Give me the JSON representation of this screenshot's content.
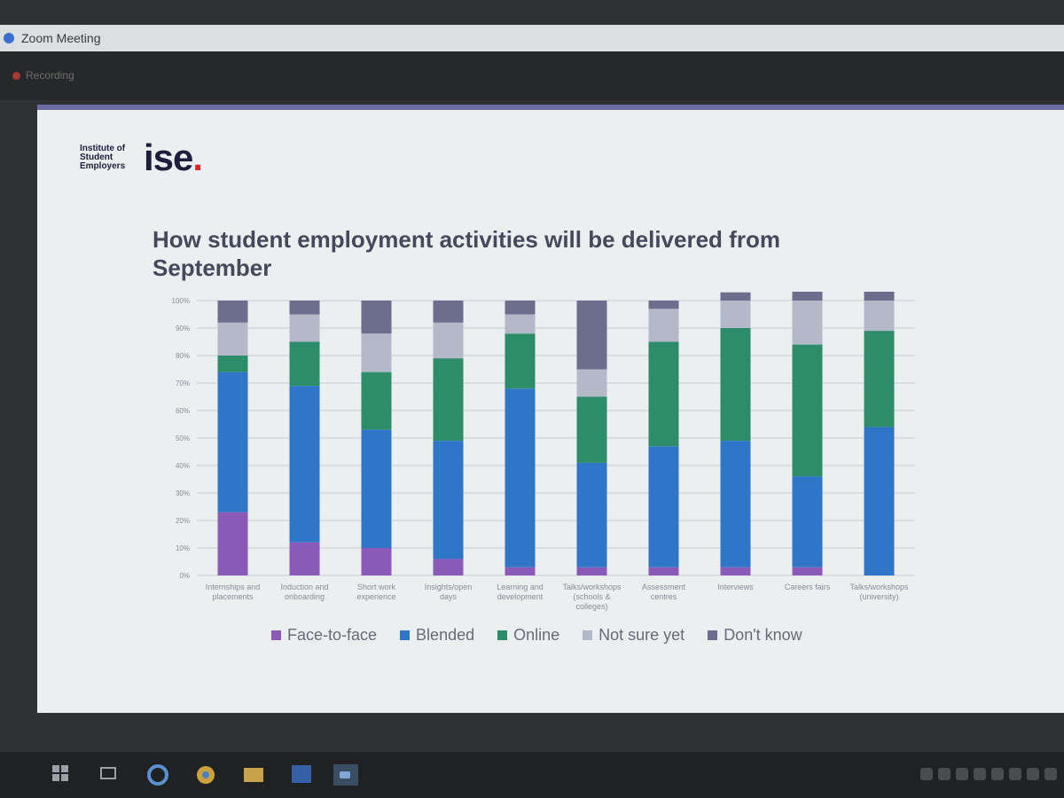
{
  "window": {
    "title": "Zoom Meeting",
    "recording_label": "Recording"
  },
  "logo": {
    "org_lines": [
      "Institute of",
      "Student",
      "Employers"
    ],
    "mark": "ise",
    "mark_dot": "."
  },
  "slide": {
    "title": "How student employment activities will be delivered from September"
  },
  "colors": {
    "Face-to-face": "#8b5ab8",
    "Blended": "#2f76c8",
    "Online": "#2d8d6a",
    "Not sure yet": "#b4b9c9",
    "Don't know": "#6d6d8e"
  },
  "chart_data": {
    "type": "bar",
    "stacked": true,
    "categories": [
      "Internships and placements",
      "Induction and onboarding",
      "Short work experience",
      "Insights/open days",
      "Learning and development",
      "Talks/workshops (schools & colleges)",
      "Assessment centres",
      "Interviews",
      "Careers fairs",
      "Talks/workshops (university)"
    ],
    "series": [
      {
        "name": "Face-to-face",
        "values": [
          23,
          12,
          10,
          6,
          3,
          3,
          3,
          3,
          3,
          0
        ]
      },
      {
        "name": "Blended",
        "values": [
          51,
          57,
          43,
          43,
          65,
          38,
          44,
          46,
          33,
          54
        ]
      },
      {
        "name": "Online",
        "values": [
          6,
          16,
          21,
          30,
          20,
          24,
          38,
          41,
          48,
          35
        ]
      },
      {
        "name": "Not sure yet",
        "values": [
          12,
          10,
          14,
          13,
          7,
          10,
          12,
          10,
          16,
          11
        ]
      },
      {
        "name": "Don't know",
        "values": [
          8,
          5,
          12,
          8,
          5,
          25,
          3,
          3,
          4,
          4
        ]
      }
    ],
    "yticks": [
      "0%",
      "10%",
      "20%",
      "30%",
      "40%",
      "50%",
      "60%",
      "70%",
      "80%",
      "90%",
      "100%"
    ],
    "ylim": [
      0,
      100
    ],
    "grid": true,
    "legend_position": "bottom"
  }
}
